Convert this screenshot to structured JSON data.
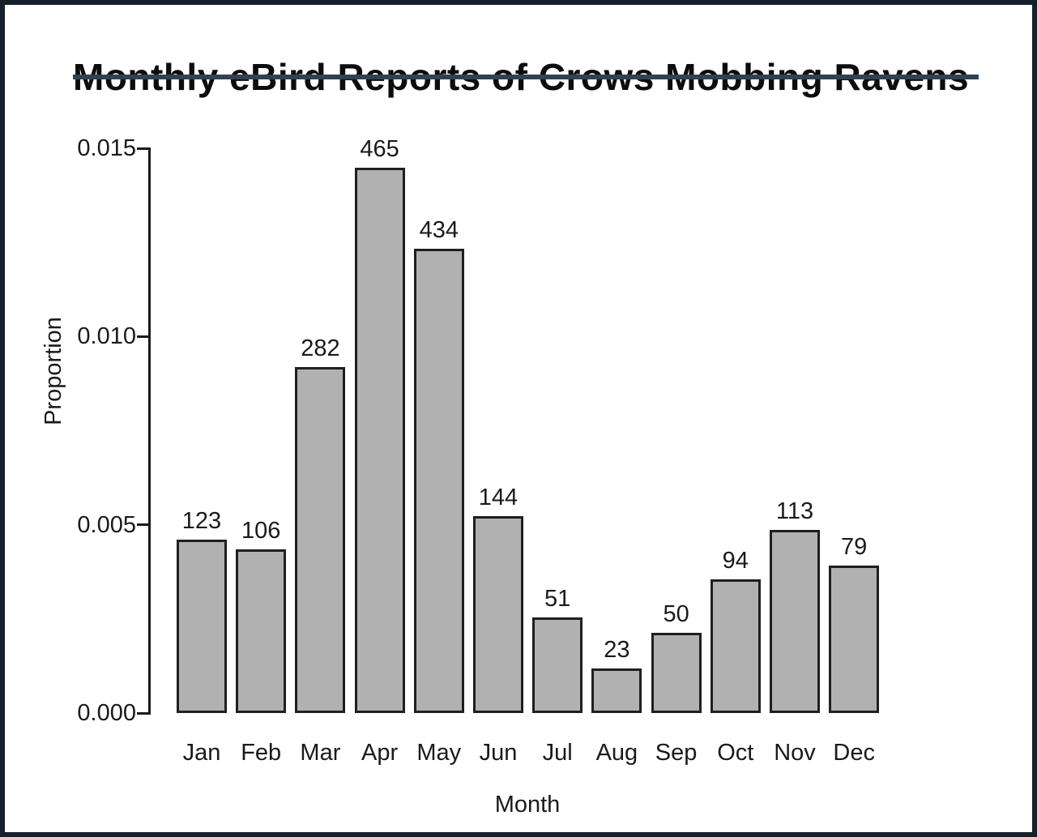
{
  "title": "Monthly eBird Reports of Crows Mobbing Ravens",
  "colors": {
    "frame_border": "#16202b",
    "title_underline": "#334050",
    "bar_fill": "#b1b1b1",
    "bar_border": "#1f1f1f",
    "axis": "#1a1a1a",
    "text": "#1a1a1a",
    "background": "#ffffff"
  },
  "chart_data": {
    "type": "bar",
    "title": "Monthly eBird Reports of Crows Mobbing Ravens",
    "xlabel": "Month",
    "ylabel": "Proportion",
    "categories": [
      "Jan",
      "Feb",
      "Mar",
      "Apr",
      "May",
      "Jun",
      "Jul",
      "Aug",
      "Sep",
      "Oct",
      "Nov",
      "Dec"
    ],
    "values": [
      0.0046,
      0.00435,
      0.0092,
      0.01448,
      0.01233,
      0.00523,
      0.00255,
      0.0012,
      0.00213,
      0.00355,
      0.00487,
      0.00392
    ],
    "bar_labels": [
      "123",
      "106",
      "282",
      "465",
      "434",
      "144",
      "51",
      "23",
      "50",
      "94",
      "113",
      "79"
    ],
    "ylim": [
      0,
      0.015
    ],
    "yticks": [
      0,
      0.005,
      0.01,
      0.015
    ],
    "ytick_labels": [
      "0.000",
      "0.005",
      "0.010",
      "0.015"
    ],
    "grid": false,
    "legend": false
  }
}
